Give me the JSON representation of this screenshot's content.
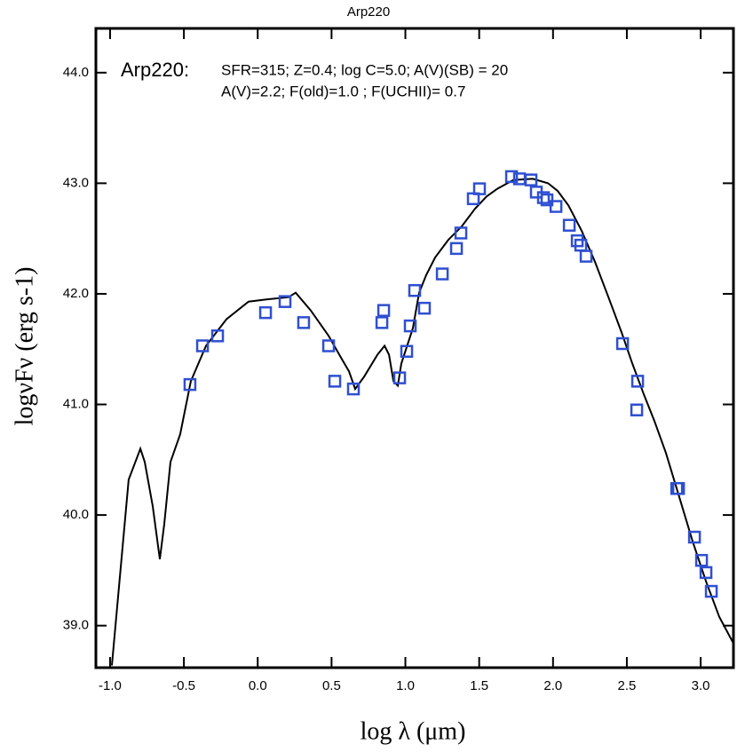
{
  "chart_data": {
    "type": "scatter",
    "title": "Arp220",
    "x_label": "log λ  (μm)",
    "y_label": "logνFν  (erg s-1)",
    "annotations": [
      "Arp220:",
      "SFR=315; Z=0.4; log C=5.0; A(V)(SB) = 20",
      "A(V)=2.2; F(old)=1.0 ; F(UCHII)= 0.7"
    ],
    "xlim": [
      -1.096,
      3.222
    ],
    "ylim": [
      38.62,
      44.4
    ],
    "xticks": [
      {
        "value": -1,
        "label": "-1.0"
      },
      -0.5,
      {
        "value": 0,
        "label": "0.0"
      },
      0.5,
      {
        "value": 1,
        "label": "1.0"
      },
      1.5,
      {
        "value": 2,
        "label": "2.0"
      },
      2.5,
      {
        "value": 3,
        "label": "3.0"
      }
    ],
    "yticks": [
      {
        "value": 39,
        "label": "39.0"
      },
      {
        "value": 40,
        "label": "40.0"
      },
      {
        "value": 41,
        "label": "41.0"
      },
      {
        "value": 42,
        "label": "42.0"
      },
      {
        "value": 43,
        "label": "43.0"
      },
      {
        "value": 44,
        "label": "44.0"
      }
    ],
    "series": [
      {
        "type": "line",
        "color": "#000000",
        "x": [
          -0.988,
          -0.928,
          -0.874,
          -0.795,
          -0.765,
          -0.711,
          -0.663,
          -0.633,
          -0.591,
          -0.525,
          -0.453,
          -0.35,
          -0.212,
          -0.062,
          0.059,
          0.209,
          0.257,
          0.359,
          0.48,
          0.57,
          0.618,
          0.66,
          0.72,
          0.811,
          0.859,
          0.889,
          0.919,
          0.949,
          0.973,
          1.051,
          1.093,
          1.141,
          1.202,
          1.292,
          1.382,
          1.472,
          1.55,
          1.623,
          1.731,
          1.863,
          1.966,
          2.032,
          2.104,
          2.194,
          2.284,
          2.375,
          2.465,
          2.537,
          2.615,
          2.687,
          2.765,
          2.856,
          2.946,
          3.036,
          3.126,
          3.222
        ],
        "values": [
          38.64,
          39.52,
          40.32,
          40.6,
          40.48,
          40.08,
          39.6,
          39.92,
          40.48,
          40.73,
          41.21,
          41.53,
          41.77,
          41.93,
          41.95,
          41.97,
          42.01,
          41.85,
          41.62,
          41.41,
          41.3,
          41.14,
          41.25,
          41.45,
          41.53,
          41.45,
          41.21,
          41.17,
          41.37,
          41.69,
          42.01,
          42.17,
          42.33,
          42.49,
          42.61,
          42.77,
          42.88,
          42.95,
          43.03,
          43.04,
          43.0,
          42.93,
          42.8,
          42.57,
          42.29,
          41.97,
          41.65,
          41.37,
          41.09,
          40.85,
          40.56,
          40.16,
          39.76,
          39.4,
          39.08,
          38.84
        ]
      },
      {
        "type": "scatter",
        "color": "#2f4fd0",
        "x": [
          -0.459,
          -0.374,
          -0.272,
          0.053,
          0.185,
          0.311,
          0.48,
          0.522,
          0.648,
          0.841,
          0.853,
          0.961,
          1.009,
          1.033,
          1.063,
          1.129,
          1.25,
          1.346,
          1.376,
          1.46,
          1.502,
          1.719,
          1.773,
          1.851,
          1.887,
          1.935,
          1.959,
          2.02,
          2.11,
          2.164,
          2.188,
          2.224,
          2.471,
          2.573,
          2.567,
          2.838,
          2.85,
          2.958,
          3.006,
          3.036,
          3.072
        ],
        "values": [
          41.18,
          41.53,
          41.62,
          41.83,
          41.93,
          41.74,
          41.53,
          41.21,
          41.14,
          41.74,
          41.85,
          41.24,
          41.48,
          41.71,
          42.03,
          41.87,
          42.18,
          42.41,
          42.55,
          42.86,
          42.95,
          43.06,
          43.04,
          43.03,
          42.92,
          42.87,
          42.85,
          42.79,
          42.62,
          42.48,
          42.44,
          42.34,
          41.55,
          41.21,
          40.95,
          40.24,
          40.24,
          39.8,
          39.59,
          39.48,
          39.31
        ]
      }
    ]
  }
}
